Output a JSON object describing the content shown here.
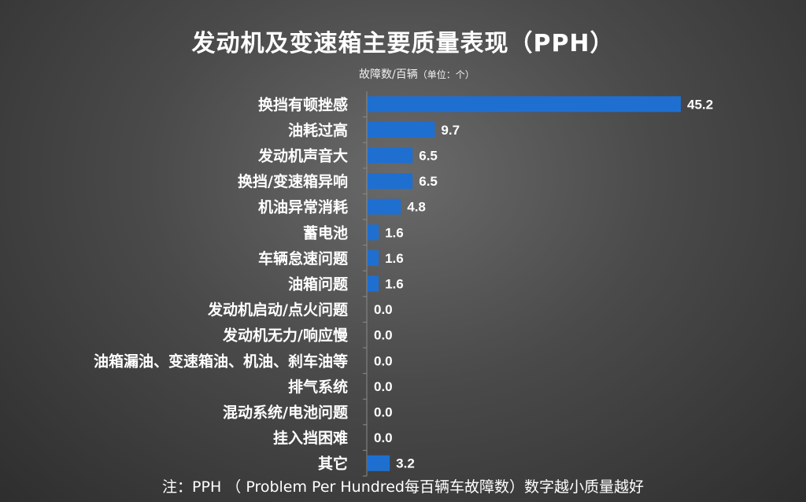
{
  "chart_data": {
    "type": "bar",
    "orientation": "horizontal",
    "title": "发动机及变速箱主要质量表现（PPH）",
    "subtitle": "故障数/百辆",
    "unit_note": "（单位：个）",
    "categories": [
      "换挡有顿挫感",
      "油耗过高",
      "发动机声音大",
      "换挡/变速箱异响",
      "机油异常消耗",
      "蓄电池",
      "车辆怠速问题",
      "油箱问题",
      "发动机启动/点火问题",
      "发动机无力/响应慢",
      "油箱漏油、变速箱油、机油、刹车油等",
      "排气系统",
      "混动系统/电池问题",
      "挂入挡困难",
      "其它"
    ],
    "values": [
      45.2,
      9.7,
      6.5,
      6.5,
      4.8,
      1.6,
      1.6,
      1.6,
      0.0,
      0.0,
      0.0,
      0.0,
      0.0,
      0.0,
      3.2
    ],
    "value_labels": [
      "45.2",
      "9.7",
      "6.5",
      "6.5",
      "4.8",
      "1.6",
      "1.6",
      "1.6",
      "0.0",
      "0.0",
      "0.0",
      "0.0",
      "0.0",
      "0.0",
      "3.2"
    ],
    "bar_color": "#1f6fd1",
    "xlim": [
      0,
      45.2
    ],
    "grid": false,
    "legend": "none",
    "footnote": "注：PPH （ Problem Per Hundred每百辆车故障数）数字越小质量越好"
  }
}
